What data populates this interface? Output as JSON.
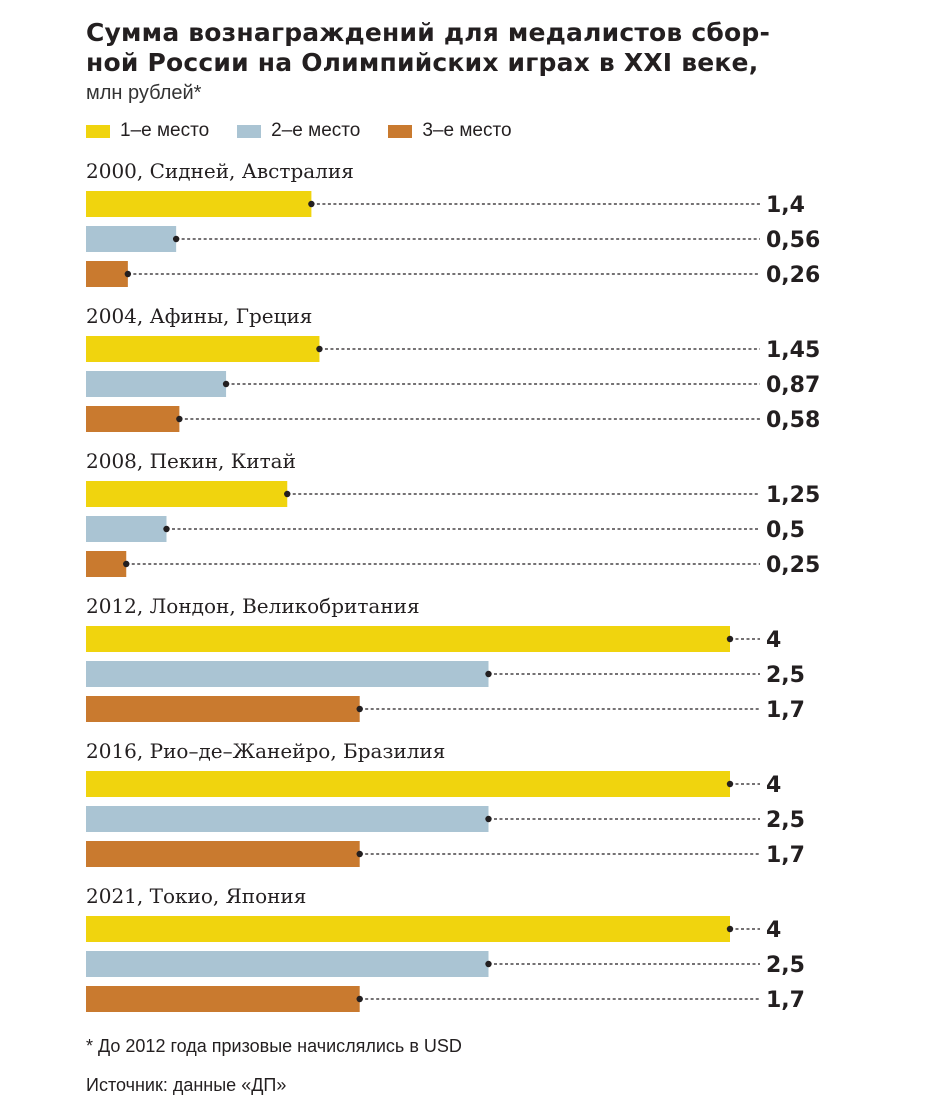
{
  "chart_data": {
    "type": "bar",
    "orientation": "horizontal",
    "title_lines": [
      "Сумма вознаграждений для медалистов сбор-",
      "ной России на Олимпийских играх в XXI веке,"
    ],
    "subtitle": "млн рублей*",
    "xlim": [
      0,
      4
    ],
    "legend": [
      {
        "name": "1–е место",
        "color": "#f0d40e"
      },
      {
        "name": "2–е место",
        "color": "#aac4d3"
      },
      {
        "name": "3–е место",
        "color": "#c97a2f"
      }
    ],
    "groups": [
      {
        "label": "2000, Сидней, Австралия",
        "values": [
          1.4,
          0.56,
          0.26
        ],
        "value_labels": [
          "1,4",
          "0,56",
          "0,26"
        ]
      },
      {
        "label": "2004, Афины, Греция",
        "values": [
          1.45,
          0.87,
          0.58
        ],
        "value_labels": [
          "1,45",
          "0,87",
          "0,58"
        ]
      },
      {
        "label": "2008, Пекин, Китай",
        "values": [
          1.25,
          0.5,
          0.25
        ],
        "value_labels": [
          "1,25",
          "0,5",
          "0,25"
        ]
      },
      {
        "label": "2012, Лондон, Великобритания",
        "values": [
          4,
          2.5,
          1.7
        ],
        "value_labels": [
          "4",
          "2,5",
          "1,7"
        ]
      },
      {
        "label": "2016, Рио–де–Жанейро, Бразилия",
        "values": [
          4,
          2.5,
          1.7
        ],
        "value_labels": [
          "4",
          "2,5",
          "1,7"
        ]
      },
      {
        "label": "2021, Токио, Япония",
        "values": [
          4,
          2.5,
          1.7
        ],
        "value_labels": [
          "4",
          "2,5",
          "1,7"
        ]
      }
    ]
  },
  "footnote": "* До 2012 года призовые начислялись в USD",
  "source": "Источник: данные «ДП»"
}
